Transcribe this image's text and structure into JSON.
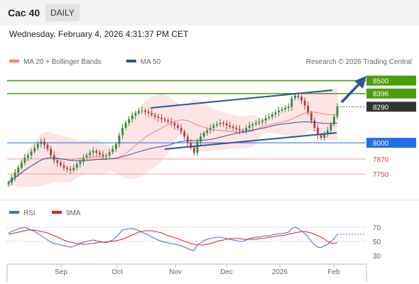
{
  "header": {
    "title": "Cac 40",
    "timeframe": "DAILY",
    "datetime": "Wednesday, February 4, 2026 4:31:37 PM CET"
  },
  "colors": {
    "green": "#4a9e0a",
    "blue": "#1f6fe5",
    "red": "#d64545",
    "price": "#333333",
    "trend": "#2d5499",
    "candle_up": "#2e8b3a",
    "candle_down": "#b73a3a",
    "bollinger_fill": "#fde0e0",
    "ma20": "#f08080",
    "ma50": "#2d5499",
    "rsi": "#3d6fd6",
    "rsi_ma": "#e02020"
  },
  "main_legend": [
    {
      "label": "MA 20 + Bollinger Bands",
      "color": "#f08080"
    },
    {
      "label": "MA 50",
      "color": "#2d5499"
    }
  ],
  "credit": "Research © 2026 Trading Central",
  "rsi_legend": [
    {
      "label": "RSI",
      "color": "#3d6fd6"
    },
    {
      "label": "9MA",
      "color": "#e02020"
    }
  ],
  "chart_data": [
    {
      "type": "candlestick",
      "x_axis": {
        "ticks": [
          "Sep",
          "Oct",
          "Nov",
          "Dec",
          "2026",
          "Feb"
        ]
      },
      "yrange": [
        7550,
        8600
      ],
      "levels": [
        {
          "label": "8500",
          "value": 8500,
          "kind": "resistance"
        },
        {
          "label": "8396",
          "value": 8396,
          "kind": "resistance"
        },
        {
          "label": "8290",
          "value": 8290,
          "kind": "price"
        },
        {
          "label": "8000",
          "value": 8000,
          "kind": "pivot"
        },
        {
          "label": "7870",
          "value": 7870,
          "kind": "support"
        },
        {
          "label": "7750",
          "value": 7750,
          "kind": "support"
        }
      ],
      "closes": [
        7680,
        7720,
        7760,
        7800,
        7840,
        7880,
        7900,
        7930,
        7960,
        7990,
        8010,
        7985,
        7950,
        7900,
        7860,
        7840,
        7820,
        7800,
        7790,
        7780,
        7800,
        7830,
        7850,
        7880,
        7900,
        7920,
        7935,
        7920,
        7905,
        7890,
        7900,
        7925,
        7950,
        7990,
        8060,
        8120,
        8160,
        8190,
        8220,
        8240,
        8255,
        8260,
        8250,
        8240,
        8225,
        8210,
        8200,
        8190,
        8180,
        8170,
        8160,
        8140,
        8120,
        8090,
        8050,
        8000,
        7960,
        7920,
        8010,
        8050,
        8080,
        8100,
        8120,
        8140,
        8150,
        8160,
        8155,
        8140,
        8130,
        8120,
        8110,
        8100,
        8095,
        8120,
        8140,
        8150,
        8160,
        8170,
        8180,
        8200,
        8210,
        8230,
        8245,
        8260,
        8270,
        8280,
        8290,
        8360,
        8380,
        8370,
        8340,
        8300,
        8240,
        8180,
        8120,
        8060,
        8040,
        8070,
        8100,
        8150,
        8210,
        8290
      ]
    },
    {
      "type": "line",
      "name": "RSI",
      "yrange": [
        20,
        80
      ],
      "ticks": [
        70,
        50,
        30
      ],
      "values": [
        62,
        64,
        66,
        68,
        69,
        70,
        68,
        66,
        64,
        61,
        58,
        55,
        52,
        49,
        47,
        46,
        45,
        44,
        43,
        42,
        43,
        45,
        47,
        49,
        50,
        51,
        52,
        51,
        50,
        49,
        48,
        50,
        52,
        56,
        61,
        66,
        67,
        68,
        68,
        67,
        65,
        63,
        61,
        59,
        56,
        54,
        52,
        50,
        49,
        48,
        47,
        46,
        45,
        44,
        42,
        40,
        38,
        37,
        45,
        48,
        51,
        53,
        54,
        55,
        56,
        56,
        55,
        54,
        53,
        52,
        51,
        50,
        50,
        52,
        54,
        55,
        56,
        56,
        57,
        58,
        58,
        59,
        60,
        61,
        61,
        62,
        63,
        68,
        70,
        68,
        65,
        61,
        56,
        50,
        45,
        42,
        41,
        44,
        46,
        50,
        54,
        60
      ],
      "ma_values": [
        60,
        61,
        62,
        63,
        64,
        65,
        66,
        66,
        66,
        65,
        64,
        63,
        62,
        60,
        58,
        56,
        54,
        52,
        50,
        49,
        48,
        47,
        47,
        46,
        46,
        47,
        47,
        48,
        49,
        49,
        49,
        50,
        50,
        51,
        52,
        53,
        55,
        57,
        59,
        61,
        63,
        64,
        65,
        65,
        65,
        64,
        63,
        62,
        60,
        58,
        57,
        55,
        54,
        52,
        50,
        49,
        47,
        46,
        45,
        45,
        45,
        46,
        47,
        48,
        50,
        51,
        52,
        53,
        54,
        54,
        54,
        54,
        53,
        53,
        53,
        53,
        53,
        54,
        54,
        55,
        56,
        56,
        57,
        58,
        58,
        59,
        60,
        61,
        62,
        63,
        64,
        64,
        63,
        62,
        60,
        58,
        56,
        53,
        50,
        48,
        47,
        48
      ]
    }
  ]
}
